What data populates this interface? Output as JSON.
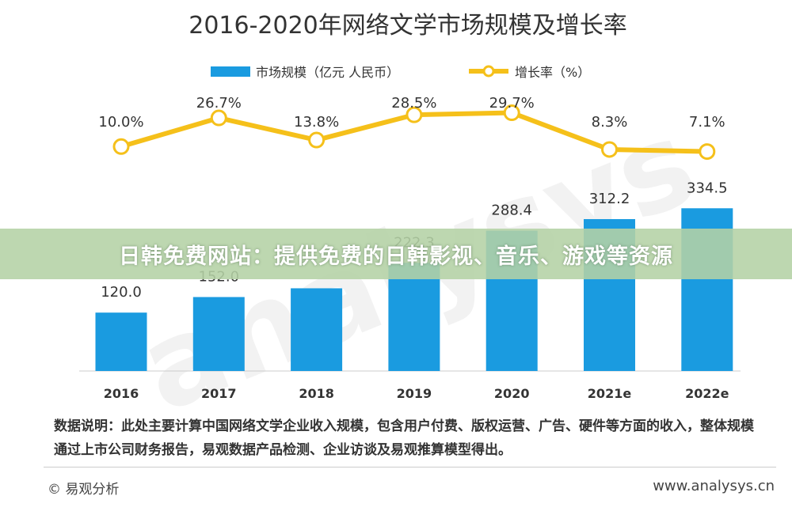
{
  "chart_data": {
    "type": "bar",
    "title": "2016-2020年网络文学市场规模及增长率",
    "categories": [
      "2016",
      "2017",
      "2018",
      "2019",
      "2020",
      "2021e",
      "2022e"
    ],
    "series": [
      {
        "name": "市场规模（亿元 人民币）",
        "type": "bar",
        "values": [
          120.0,
          152.0,
          170.0,
          222.3,
          288.4,
          312.2,
          334.5
        ],
        "labels": [
          "120.0",
          "152.0",
          "",
          "222.3",
          "288.4",
          "312.2",
          "334.5"
        ]
      },
      {
        "name": "增长率（%）",
        "type": "line",
        "values": [
          10.0,
          26.7,
          13.8,
          28.5,
          29.7,
          8.3,
          7.1
        ],
        "labels": [
          "10.0%",
          "26.7%",
          "13.8%",
          "28.5%",
          "29.7%",
          "8.3%",
          "7.1%"
        ]
      }
    ],
    "legend_position": "top-center",
    "colors": {
      "bar": "#1a9be0",
      "line": "#f5c01a"
    }
  },
  "note": "数据说明：此处主要计算中国网络文学企业收入规模，包含用户付费、版权运营、广告、硬件等方面的收入，整体规模通过上市公司财务报告，易观数据产品检测、企业访谈及易观推算模型得出。",
  "footer": {
    "source": "© 易观分析",
    "website": "www.analysys.cn"
  },
  "watermark": "analysys",
  "banner": "日韩免费网站：提供免费的日韩影视、音乐、游戏等资源"
}
